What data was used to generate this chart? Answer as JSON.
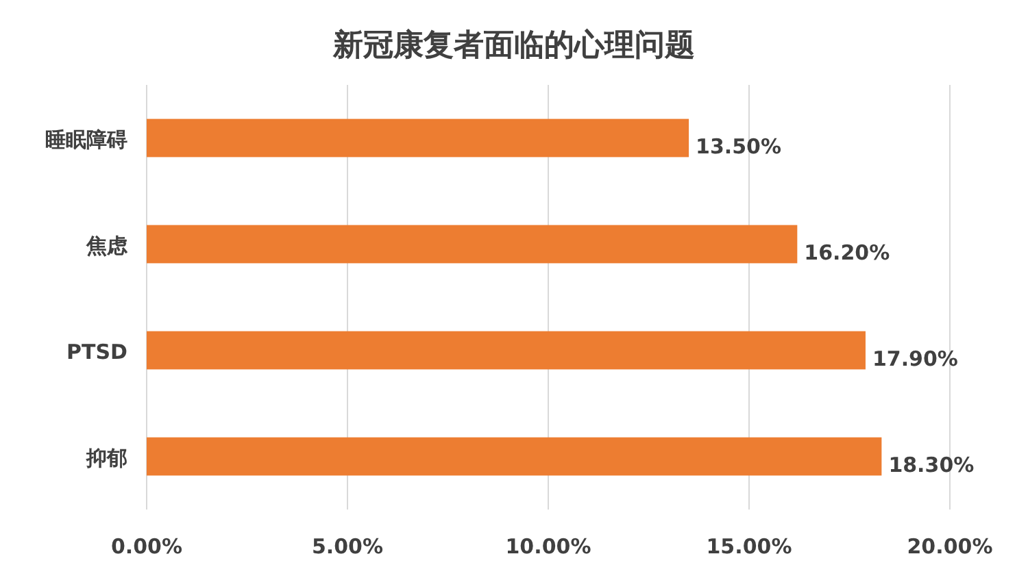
{
  "chart_data": {
    "type": "bar",
    "orientation": "horizontal",
    "title": "新冠康复者面临的心理问题",
    "categories": [
      "睡眠障碍",
      "焦虑",
      "PTSD",
      "抑郁"
    ],
    "values": [
      13.5,
      16.2,
      17.9,
      18.3
    ],
    "value_labels": [
      "13.50%",
      "16.20%",
      "17.90%",
      "18.30%"
    ],
    "color": "#ed7d31",
    "xlim": [
      0,
      20
    ],
    "xticks": [
      {
        "value": 0,
        "label": "0.00%"
      },
      {
        "value": 5,
        "label": "5.00%"
      },
      {
        "value": 10,
        "label": "10.00%"
      },
      {
        "value": 15,
        "label": "15.00%"
      },
      {
        "value": 20,
        "label": "20.00%"
      }
    ],
    "grid": "x"
  }
}
